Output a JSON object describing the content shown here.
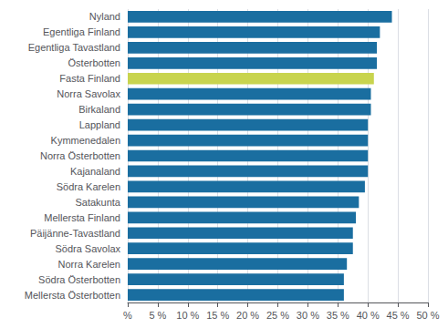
{
  "chart_data": {
    "type": "bar",
    "orientation": "horizontal",
    "categories": [
      "Nyland",
      "Egentliga Finland",
      "Egentliga Tavastland",
      "Österbotten",
      "Fasta Finland",
      "Norra Savolax",
      "Birkaland",
      "Lappland",
      "Kymmenedalen",
      "Norra Österbotten",
      "Kajanaland",
      "Södra Karelen",
      "Satakunta",
      "Mellersta Finland",
      "Päijänne-Tavastland",
      "Södra Savolax",
      "Norra Karelen",
      "Södra Österbotten",
      "Mellersta Österbotten"
    ],
    "values": [
      44.0,
      42.0,
      41.5,
      41.5,
      41.0,
      40.5,
      40.5,
      40.0,
      40.0,
      40.0,
      40.0,
      39.5,
      38.5,
      38.0,
      37.5,
      37.5,
      36.5,
      36.0,
      36.0
    ],
    "colors": [
      "#1a6ea0",
      "#1a6ea0",
      "#1a6ea0",
      "#1a6ea0",
      "#c8d44e",
      "#1a6ea0",
      "#1a6ea0",
      "#1a6ea0",
      "#1a6ea0",
      "#1a6ea0",
      "#1a6ea0",
      "#1a6ea0",
      "#1a6ea0",
      "#1a6ea0",
      "#1a6ea0",
      "#1a6ea0",
      "#1a6ea0",
      "#1a6ea0",
      "#1a6ea0"
    ],
    "xlim": [
      0,
      50
    ],
    "xticks": [
      {
        "value": 0,
        "label": "%"
      },
      {
        "value": 5,
        "label": "5 %"
      },
      {
        "value": 10,
        "label": "10 %"
      },
      {
        "value": 15,
        "label": "15 %"
      },
      {
        "value": 20,
        "label": "20 %"
      },
      {
        "value": 25,
        "label": "25 %"
      },
      {
        "value": 30,
        "label": "30 %"
      },
      {
        "value": 35,
        "label": "35 %"
      },
      {
        "value": 40,
        "label": "40 %"
      },
      {
        "value": 45,
        "label": "45 %"
      },
      {
        "value": 50,
        "label": "50 %"
      }
    ],
    "grid": true
  }
}
